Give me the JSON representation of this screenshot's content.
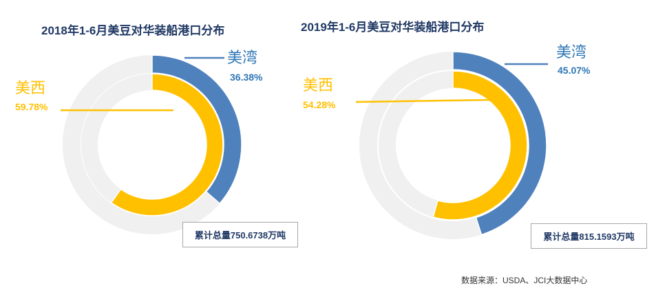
{
  "colors": {
    "blue": "#4f81bd",
    "yellow": "#ffc000",
    "grey": "#f0f0f0",
    "blue_text": "#2e75b6",
    "yellow_text": "#ffc000"
  },
  "chart_data": [
    {
      "type": "pie",
      "title": "2018年1-6月美豆对华装船港口分布",
      "series": [
        {
          "name": "美湾",
          "value": 36.38,
          "label": "36.38%"
        },
        {
          "name": "美西",
          "value": 59.78,
          "label": "59.78%"
        }
      ],
      "total": "累计总量750.6738万吨"
    },
    {
      "type": "pie",
      "title": "2019年1-6月美豆对华装船港口分布",
      "series": [
        {
          "name": "美湾",
          "value": 45.07,
          "label": "45.07%"
        },
        {
          "name": "美西",
          "value": 54.28,
          "label": "54.28%"
        }
      ],
      "total": "累计总量815.1593万吨"
    }
  ],
  "source": "数据来源：USDA、JCI大数据中心"
}
